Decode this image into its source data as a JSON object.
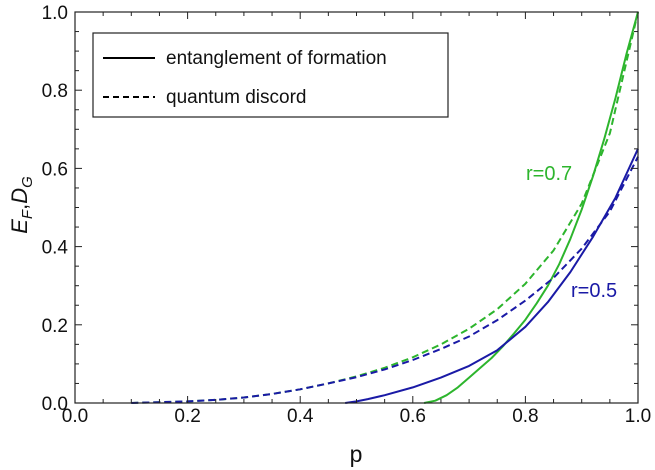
{
  "chart_data": {
    "type": "line",
    "title": "",
    "xlabel": "p",
    "ylabel": {
      "main_1": "E",
      "sub_1": "F",
      "sep": ",",
      "main_2": "D",
      "sub_2": "G"
    },
    "xlim": [
      0.0,
      1.0
    ],
    "ylim": [
      0.0,
      1.0
    ],
    "grid": false,
    "legend_placement": "top-left",
    "x_ticks": [
      "0.0",
      "0.2",
      "0.4",
      "0.6",
      "0.8",
      "1.0"
    ],
    "y_ticks": [
      "0.0",
      "0.2",
      "0.4",
      "0.6",
      "0.8",
      "1.0"
    ],
    "legend": [
      {
        "label": "entanglement of formation",
        "style": "solid"
      },
      {
        "label": "quantum discord",
        "style": "dashed"
      }
    ],
    "annotations": [
      {
        "text": "r=0.7",
        "color": "#2db52d"
      },
      {
        "text": "r=0.5",
        "color": "#1a1aa6"
      }
    ],
    "series": [
      {
        "r": "r=0.7",
        "quantity": "entanglement of formation",
        "color": "#2db52d",
        "style": "solid",
        "x": [
          0.62,
          0.64,
          0.66,
          0.68,
          0.7,
          0.72,
          0.74,
          0.76,
          0.78,
          0.8,
          0.82,
          0.84,
          0.86,
          0.88,
          0.9,
          0.92,
          0.94,
          0.96,
          0.98,
          1.0
        ],
        "y": [
          0.0,
          0.006,
          0.02,
          0.04,
          0.065,
          0.09,
          0.115,
          0.145,
          0.178,
          0.213,
          0.255,
          0.3,
          0.355,
          0.42,
          0.495,
          0.58,
          0.675,
          0.78,
          0.895,
          1.03
        ]
      },
      {
        "r": "r=0.7",
        "quantity": "quantum discord",
        "color": "#2db52d",
        "style": "dashed",
        "x": [
          0.1,
          0.15,
          0.2,
          0.25,
          0.3,
          0.35,
          0.4,
          0.45,
          0.5,
          0.55,
          0.6,
          0.65,
          0.7,
          0.75,
          0.8,
          0.85,
          0.9,
          0.95,
          1.0
        ],
        "y": [
          0.0,
          0.002,
          0.004,
          0.008,
          0.014,
          0.023,
          0.035,
          0.05,
          0.068,
          0.09,
          0.117,
          0.15,
          0.19,
          0.24,
          0.305,
          0.39,
          0.51,
          0.69,
          1.0
        ]
      },
      {
        "r": "r=0.5",
        "quantity": "entanglement of formation",
        "color": "#1a1aa6",
        "style": "solid",
        "x": [
          0.48,
          0.5,
          0.52,
          0.55,
          0.6,
          0.65,
          0.7,
          0.75,
          0.8,
          0.84,
          0.88,
          0.92,
          0.96,
          1.0
        ],
        "y": [
          0.0,
          0.004,
          0.01,
          0.02,
          0.04,
          0.065,
          0.095,
          0.135,
          0.195,
          0.258,
          0.335,
          0.425,
          0.525,
          0.65
        ]
      },
      {
        "r": "r=0.5",
        "quantity": "quantum discord",
        "color": "#1a1aa6",
        "style": "dashed",
        "x": [
          0.1,
          0.15,
          0.2,
          0.25,
          0.3,
          0.35,
          0.4,
          0.45,
          0.5,
          0.55,
          0.6,
          0.65,
          0.7,
          0.75,
          0.8,
          0.85,
          0.9,
          0.95,
          1.0
        ],
        "y": [
          0.0,
          0.002,
          0.004,
          0.008,
          0.014,
          0.023,
          0.035,
          0.05,
          0.066,
          0.086,
          0.11,
          0.138,
          0.17,
          0.212,
          0.262,
          0.32,
          0.395,
          0.49,
          0.63
        ]
      }
    ]
  }
}
